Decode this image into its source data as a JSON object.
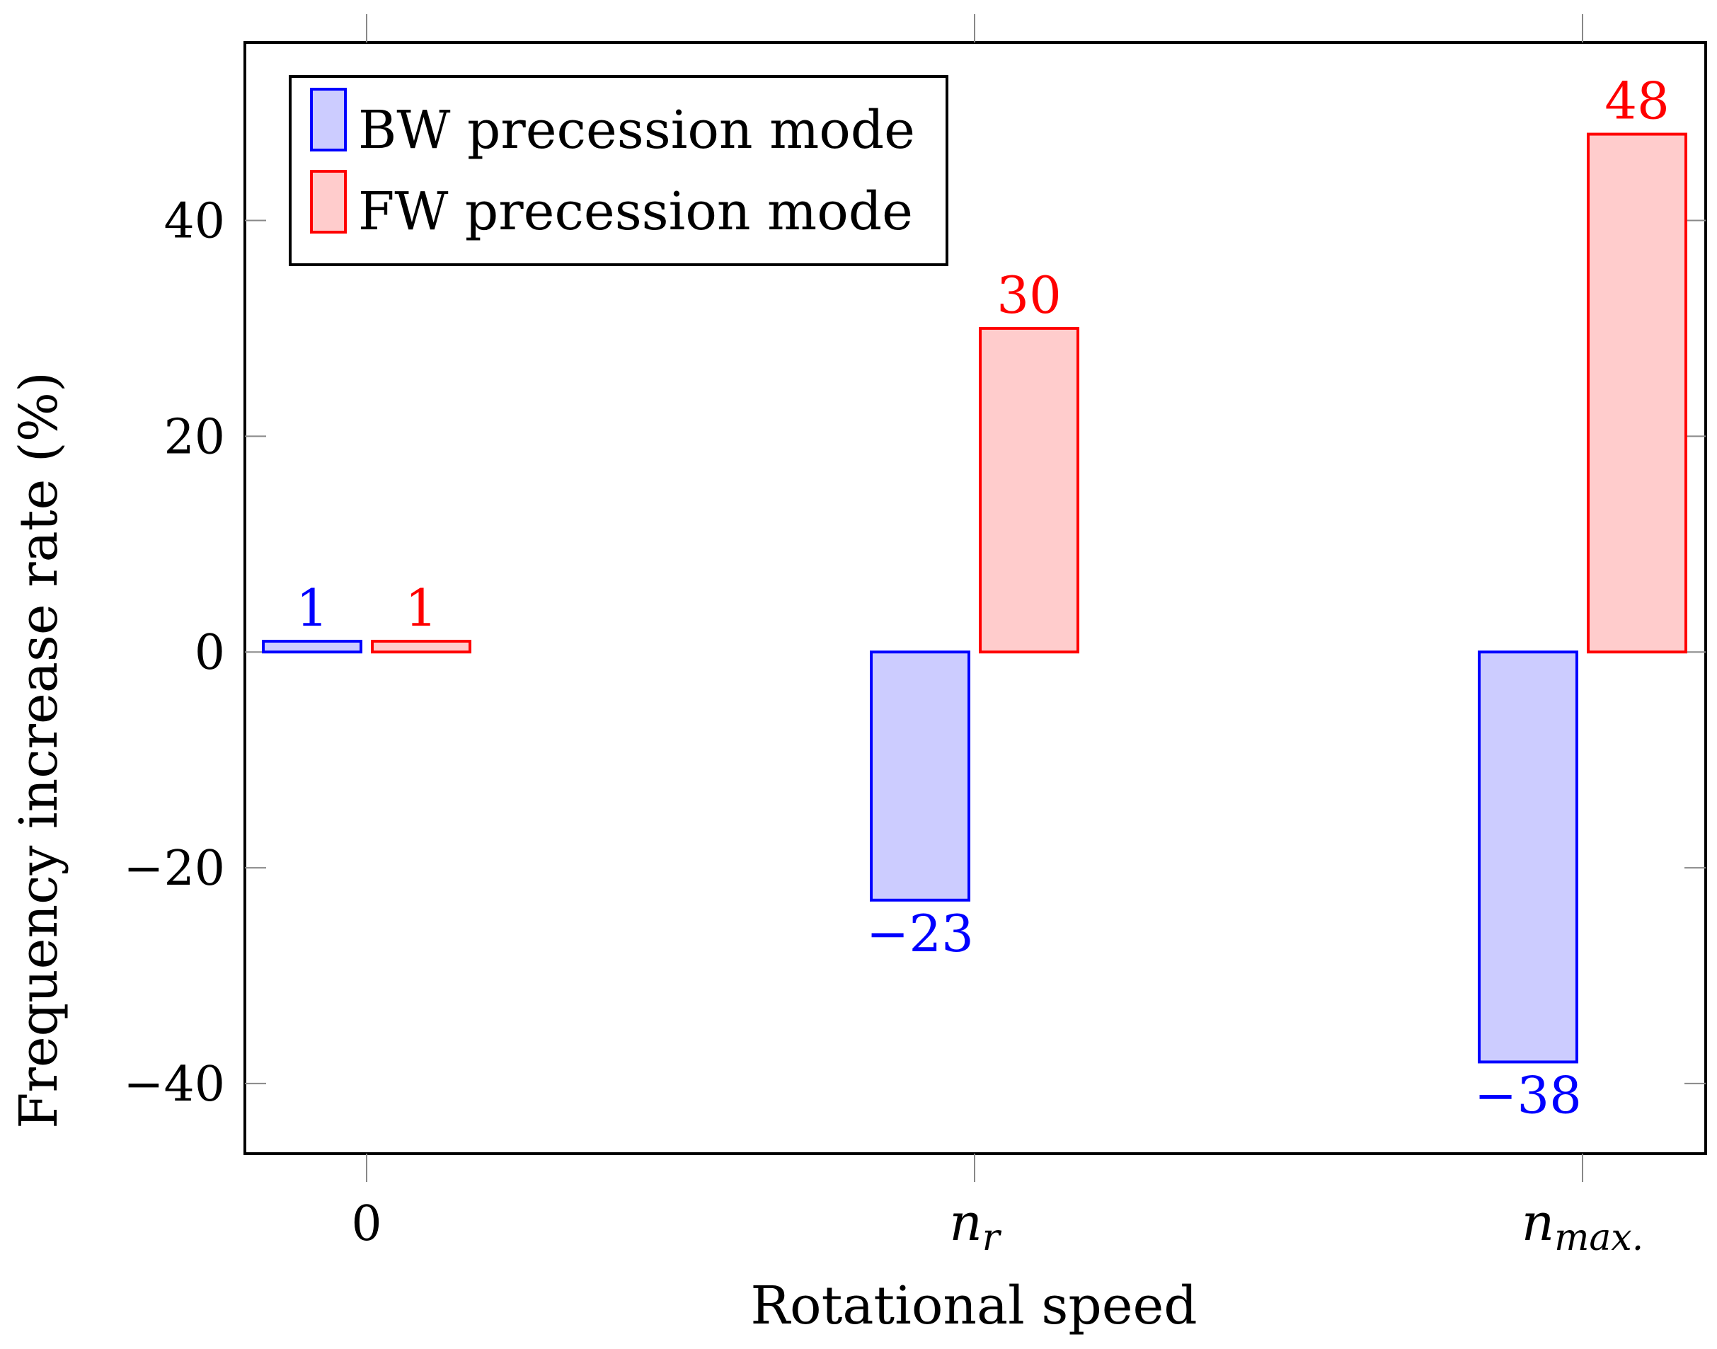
{
  "chart_data": {
    "type": "bar",
    "title": "",
    "xlabel": "Rotational speed",
    "ylabel": "Frequency increase rate (%)",
    "categories": [
      "0",
      "n_r",
      "n_max."
    ],
    "category_labels": [
      {
        "base": "0",
        "sub": ""
      },
      {
        "base": "n",
        "sub": "r"
      },
      {
        "base": "n",
        "sub": "max."
      }
    ],
    "ylim": [
      -46.5,
      56.5
    ],
    "yticks": [
      -40,
      -20,
      0,
      20,
      40
    ],
    "ytick_labels": [
      "−40",
      "−20",
      "0",
      "20",
      "40"
    ],
    "grid": false,
    "legend_position": "top-left",
    "series": [
      {
        "name": "BW precession mode",
        "values": [
          1,
          -23,
          -38
        ],
        "value_labels": [
          "1",
          "−23",
          "−38"
        ],
        "stroke": "#0000ff",
        "fill": "#ccccff"
      },
      {
        "name": "FW precession mode",
        "values": [
          1,
          30,
          48
        ],
        "value_labels": [
          "1",
          "30",
          "48"
        ],
        "stroke": "#ff0000",
        "fill": "#ffcccc"
      }
    ]
  }
}
